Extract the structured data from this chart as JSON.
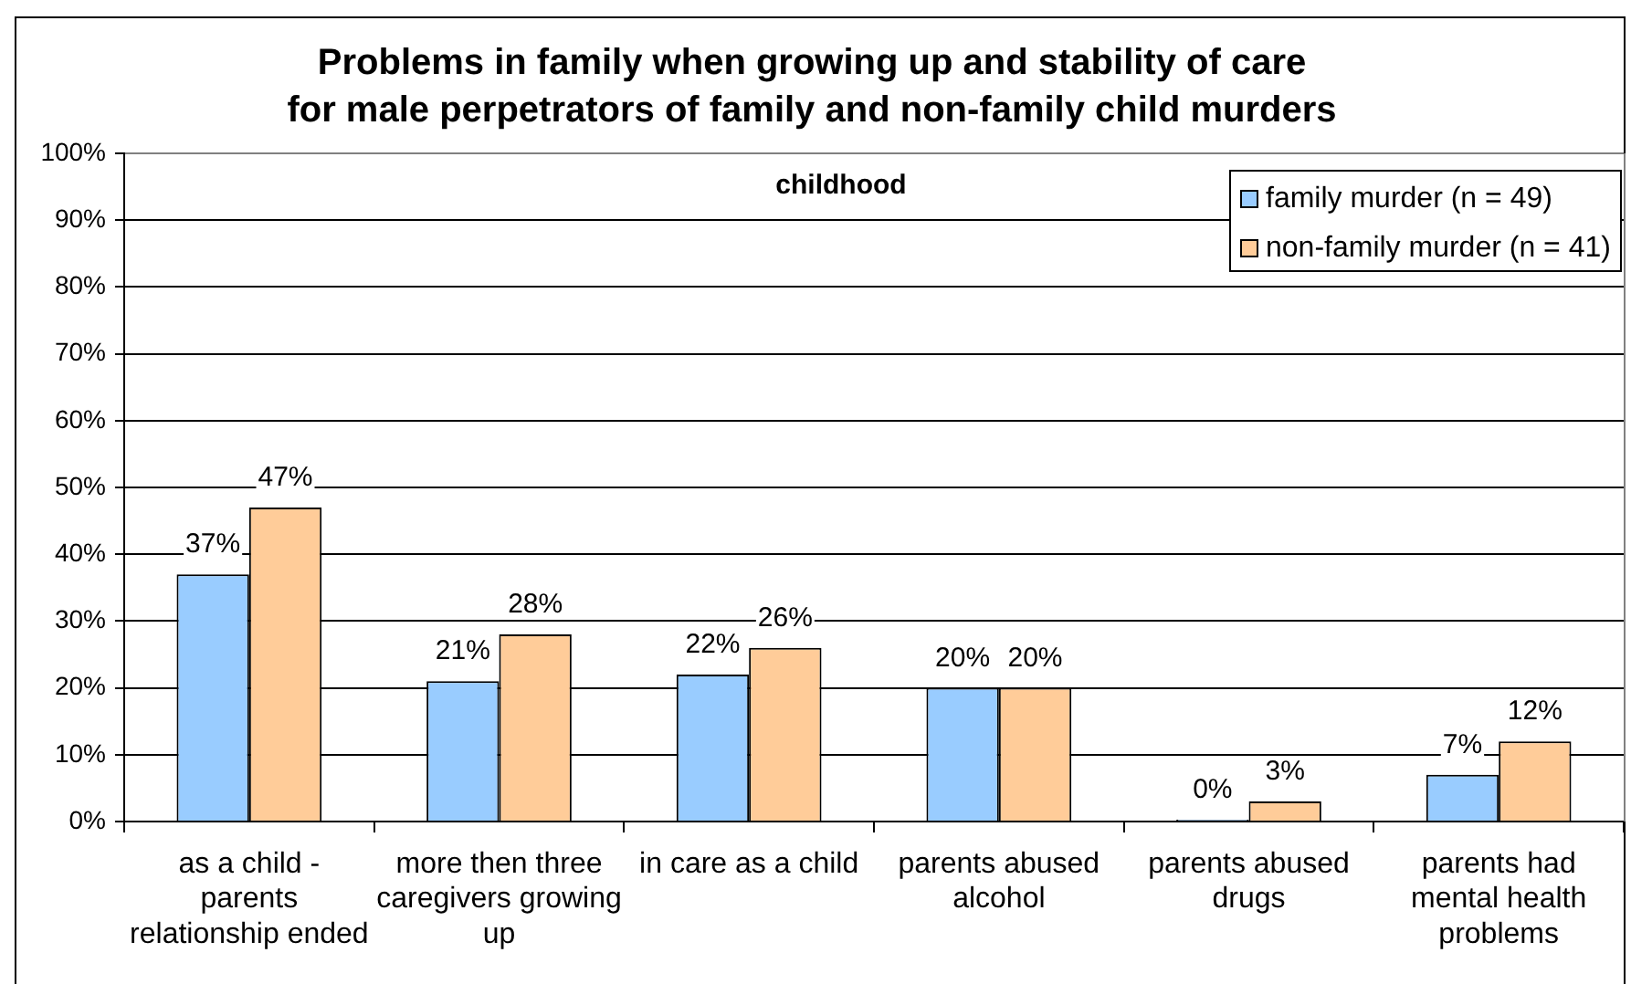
{
  "chart_data": {
    "type": "bar",
    "title": "Problems in family when growing up and stability of care\nfor male perpetrators of family and non-family child murders",
    "annotations": [
      "childhood"
    ],
    "categories": [
      "as a child - parents relationship ended",
      "more then three caregivers growing up",
      "in care as a child",
      "parents abused alcohol",
      "parents abused drugs",
      "parents had mental health problems"
    ],
    "series": [
      {
        "name": "family murder (n = 49)",
        "color": "#99ccff",
        "values": [
          37,
          21,
          22,
          20,
          0,
          7
        ],
        "value_labels": [
          "37%",
          "21%",
          "22%",
          "20%",
          "0%",
          "7%"
        ]
      },
      {
        "name": "non-family murder (n = 41)",
        "color": "#ffcc99",
        "values": [
          47,
          28,
          26,
          20,
          3,
          12
        ],
        "value_labels": [
          "47%",
          "28%",
          "26%",
          "20%",
          "3%",
          "12%"
        ]
      }
    ],
    "ylim": [
      0,
      100
    ],
    "yticks": [
      {
        "value": 0,
        "label": "0%"
      },
      {
        "value": 10,
        "label": "10%"
      },
      {
        "value": 20,
        "label": "20%"
      },
      {
        "value": 30,
        "label": "30%"
      },
      {
        "value": 40,
        "label": "40%"
      },
      {
        "value": 50,
        "label": "50%"
      },
      {
        "value": 60,
        "label": "60%"
      },
      {
        "value": 70,
        "label": "70%"
      },
      {
        "value": 80,
        "label": "80%"
      },
      {
        "value": 90,
        "label": "90%"
      },
      {
        "value": 100,
        "label": "100%"
      }
    ],
    "grid": "y",
    "legend": "top right"
  }
}
